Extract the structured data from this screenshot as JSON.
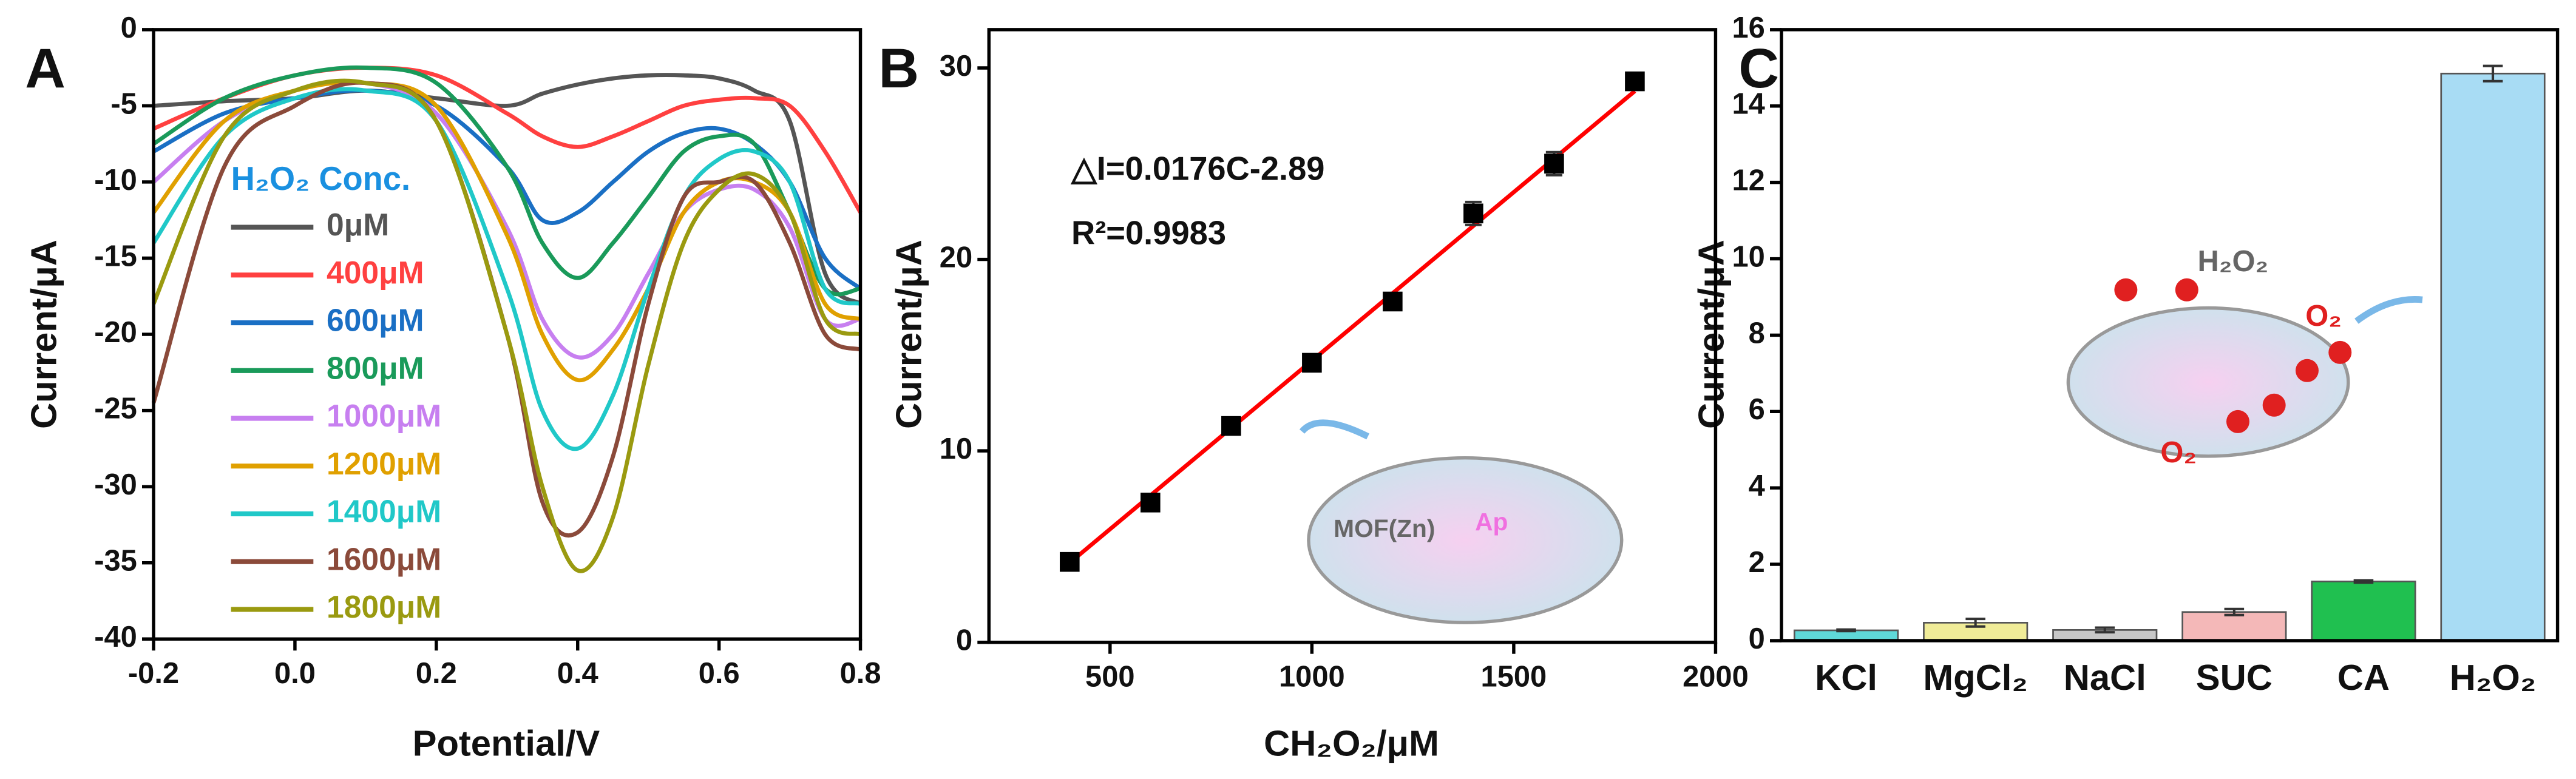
{
  "chart_data": [
    {
      "type": "line",
      "panel_label": "A",
      "x_label": "Potential/V",
      "y_label": "Current/μA",
      "legend_title": "H₂O₂ Conc.",
      "x": [
        -0.2,
        -0.1,
        0,
        0.1,
        0.2,
        0.3,
        0.35,
        0.4,
        0.45,
        0.5,
        0.55,
        0.6,
        0.65,
        0.7,
        0.75,
        0.8
      ],
      "xlim": [
        -0.2,
        0.8
      ],
      "xticks": [
        -0.2,
        {
          "value": 0,
          "label": "0.0"
        },
        0.2,
        0.4,
        0.6,
        0.8
      ],
      "ylim": [
        -40,
        0
      ],
      "yticks": [
        0,
        -5,
        -10,
        -15,
        -20,
        -25,
        -30,
        -35,
        -40
      ],
      "series": [
        {
          "name": "0μM",
          "color": "#555555",
          "values": [
            -5,
            -4.7,
            -4.5,
            -4,
            -4.5,
            -5,
            -4.2,
            -3.6,
            -3.2,
            -3,
            -3,
            -3.2,
            -4,
            -6,
            -16,
            -18
          ]
        },
        {
          "name": "400μM",
          "color": "#ff4040",
          "values": [
            -6.5,
            -4.5,
            -3,
            -2.5,
            -3,
            -5.5,
            -7,
            -7.7,
            -7,
            -6,
            -5,
            -4.6,
            -4.5,
            -5,
            -8,
            -12
          ]
        },
        {
          "name": "600μM",
          "color": "#1a6fc4",
          "values": [
            -8,
            -5.5,
            -4.5,
            -4,
            -5,
            -9,
            -12.5,
            -12,
            -10,
            -8,
            -6.8,
            -6.5,
            -7.5,
            -10,
            -15,
            -17
          ]
        },
        {
          "name": "800μM",
          "color": "#1a9a5a",
          "values": [
            -7.5,
            -4.5,
            -3,
            -2.5,
            -3.5,
            -9,
            -14,
            -16.3,
            -14,
            -11,
            -8,
            -7,
            -7.5,
            -12,
            -17,
            -17
          ]
        },
        {
          "name": "1000μM",
          "color": "#c77ff0",
          "values": [
            -10,
            -6,
            -4,
            -3.5,
            -5.5,
            -13,
            -19,
            -21.5,
            -20,
            -16,
            -12,
            -10.5,
            -10.5,
            -13,
            -19,
            -19
          ]
        },
        {
          "name": "1200μM",
          "color": "#e0a000",
          "values": [
            -12,
            -6,
            -4,
            -3.5,
            -5,
            -13.5,
            -20,
            -23,
            -21,
            -17,
            -12,
            -10,
            -10,
            -12,
            -18,
            -19
          ]
        },
        {
          "name": "1400μM",
          "color": "#20c8c8",
          "values": [
            -14,
            -7,
            -4.5,
            -4,
            -6,
            -17,
            -25,
            -27.5,
            -24,
            -17,
            -11,
            -8.5,
            -8,
            -10,
            -17,
            -18
          ]
        },
        {
          "name": "1600μM",
          "color": "#8b4a3a",
          "values": [
            -24.5,
            -9,
            -5,
            -3.5,
            -6,
            -20,
            -31,
            -33,
            -28,
            -18,
            -11,
            -10,
            -10,
            -14,
            -20,
            -21
          ]
        },
        {
          "name": "1800μM",
          "color": "#9a9a10",
          "values": [
            -18,
            -7,
            -4,
            -3.5,
            -6,
            -20,
            -30,
            -35.5,
            -32,
            -22,
            -14,
            -10.5,
            -9.5,
            -12,
            -19,
            -20
          ]
        }
      ]
    },
    {
      "type": "scatter",
      "panel_label": "B",
      "x_label": "CH₂O₂/μM",
      "y_label": "Current/μA",
      "x": [
        400,
        600,
        800,
        1000,
        1200,
        1400,
        1600,
        1800
      ],
      "values": [
        4.2,
        7.3,
        11.3,
        14.6,
        17.8,
        22.4,
        25.0,
        29.3
      ],
      "errors": [
        0.2,
        0.2,
        0.2,
        0.2,
        0.2,
        0.6,
        0.6,
        0.2
      ],
      "color": "#000000",
      "fit": {
        "x": [
          400,
          1800
        ],
        "values": [
          4.15,
          28.79
        ],
        "color": "#ff0000"
      },
      "annotations": [
        "△I=0.0176C-2.89",
        "R²=0.9983"
      ],
      "inset_labels": [
        "MOF(Zn)",
        "Ap"
      ],
      "xlim": [
        200,
        2000
      ],
      "xticks": [
        500,
        1000,
        1500,
        2000
      ],
      "ylim": [
        0,
        32
      ],
      "yticks": [
        0,
        10,
        20,
        30
      ]
    },
    {
      "type": "bar",
      "panel_label": "C",
      "y_label": "Current/μA",
      "categories": [
        "KCl",
        "MgCl₂",
        "NaCl",
        "SUC",
        "CA",
        "H₂O₂"
      ],
      "values": [
        0.27,
        0.47,
        0.28,
        0.75,
        1.55,
        14.85
      ],
      "errors": [
        0.02,
        0.1,
        0.06,
        0.08,
        0.03,
        0.2
      ],
      "colors": [
        "#5fd8d8",
        "#f0ec98",
        "#c8c8c8",
        "#f4b8b8",
        "#20c050",
        "#a8dcf4"
      ],
      "inset_labels": [
        "H₂O₂",
        "O₂",
        "O₂"
      ],
      "ylim": [
        0,
        16
      ],
      "yticks": [
        0,
        2,
        4,
        6,
        8,
        10,
        12,
        14,
        16
      ]
    }
  ]
}
